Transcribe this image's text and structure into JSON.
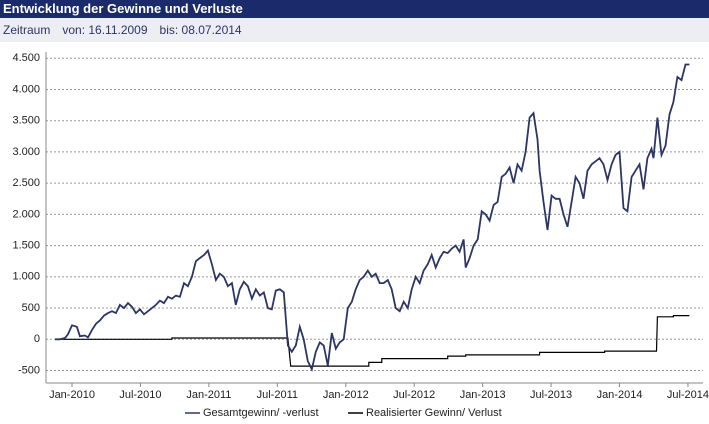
{
  "header": {
    "title": "Entwicklung der Gewinne und Verluste",
    "period_label": "Zeitraum",
    "from": "von: 16.11.2009",
    "to": "bis: 08.07.2014"
  },
  "chart_data": {
    "type": "line",
    "grid": true,
    "legend": "bottom",
    "xlim": [
      2009.81,
      2014.61
    ],
    "xticks": [
      {
        "value": 2010,
        "label": "Jan-2010"
      },
      {
        "value": 2010.5,
        "label": "Jul-2010"
      },
      {
        "value": 2011,
        "label": "Jan-2011"
      },
      {
        "value": 2011.5,
        "label": "Jul-2011"
      },
      {
        "value": 2012,
        "label": "Jan-2012"
      },
      {
        "value": 2012.5,
        "label": "Jul-2012"
      },
      {
        "value": 2013,
        "label": "Jan-2013"
      },
      {
        "value": 2013.5,
        "label": "Jul-2013"
      },
      {
        "value": 2014,
        "label": "Jan-2014"
      },
      {
        "value": 2014.5,
        "label": "Jul-2014"
      }
    ],
    "ylim": [
      -700,
      4600
    ],
    "yticks": [
      -500,
      0,
      500,
      {
        "value": 1000,
        "label": "1.000"
      },
      {
        "value": 1500,
        "label": "1.500"
      },
      {
        "value": 2000,
        "label": "2.000"
      },
      {
        "value": 2500,
        "label": "2.500"
      },
      {
        "value": 3000,
        "label": "3.000"
      },
      {
        "value": 3500,
        "label": "3.500"
      },
      {
        "value": 4000,
        "label": "4.000"
      },
      {
        "value": 4500,
        "label": "4.500"
      }
    ],
    "series": [
      {
        "name": "Gesamtgewinn/ -verlust",
        "color": "#2b3566",
        "x": [
          2009.876,
          2009.912,
          2009.949,
          2009.971,
          2010.0,
          2010.036,
          2010.058,
          2010.095,
          2010.117,
          2010.146,
          2010.175,
          2010.204,
          2010.234,
          2010.263,
          2010.292,
          2010.321,
          2010.35,
          2010.38,
          2010.409,
          2010.438,
          2010.467,
          2010.496,
          2010.526,
          2010.555,
          2010.584,
          2010.613,
          2010.642,
          2010.672,
          2010.701,
          2010.73,
          2010.759,
          2010.788,
          2010.818,
          2010.847,
          2010.876,
          2010.905,
          2010.934,
          2010.964,
          2010.993,
          2011.022,
          2011.051,
          2011.08,
          2011.109,
          2011.139,
          2011.168,
          2011.197,
          2011.226,
          2011.255,
          2011.285,
          2011.314,
          2011.343,
          2011.372,
          2011.401,
          2011.431,
          2011.46,
          2011.489,
          2011.518,
          2011.547,
          2011.577,
          2011.606,
          2011.635,
          2011.664,
          2011.693,
          2011.723,
          2011.752,
          2011.781,
          2011.81,
          2011.839,
          2011.869,
          2011.898,
          2011.927,
          2011.956,
          2011.985,
          2012.015,
          2012.044,
          2012.073,
          2012.102,
          2012.131,
          2012.161,
          2012.19,
          2012.219,
          2012.248,
          2012.277,
          2012.307,
          2012.336,
          2012.365,
          2012.394,
          2012.423,
          2012.453,
          2012.482,
          2012.511,
          2012.54,
          2012.569,
          2012.599,
          2012.628,
          2012.657,
          2012.686,
          2012.715,
          2012.745,
          2012.774,
          2012.803,
          2012.832,
          2012.861,
          2012.876,
          2012.905,
          2012.934,
          2012.964,
          2012.993,
          2013.022,
          2013.051,
          2013.08,
          2013.109,
          2013.139,
          2013.168,
          2013.197,
          2013.226,
          2013.255,
          2013.285,
          2013.314,
          2013.343,
          2013.372,
          2013.401,
          2013.416,
          2013.445,
          2013.474,
          2013.504,
          2013.533,
          2013.562,
          2013.591,
          2013.62,
          2013.65,
          2013.679,
          2013.708,
          2013.737,
          2013.766,
          2013.796,
          2013.825,
          2013.854,
          2013.883,
          2013.912,
          2013.942,
          2013.971,
          2014.0,
          2014.029,
          2014.058,
          2014.088,
          2014.117,
          2014.146,
          2014.175,
          2014.204,
          2014.234,
          2014.248,
          2014.277,
          2014.307,
          2014.336,
          2014.365,
          2014.394,
          2014.423,
          2014.453,
          2014.482,
          2014.511
        ],
        "values": [
          0,
          0,
          20,
          80,
          224,
          200,
          50,
          60,
          30,
          150,
          250,
          300,
          380,
          420,
          450,
          420,
          550,
          500,
          580,
          520,
          420,
          480,
          400,
          450,
          500,
          550,
          620,
          580,
          680,
          650,
          700,
          680,
          900,
          850,
          1000,
          1250,
          1300,
          1350,
          1420,
          1200,
          950,
          1050,
          1000,
          850,
          900,
          550,
          800,
          920,
          850,
          650,
          800,
          700,
          750,
          500,
          480,
          780,
          800,
          750,
          -100,
          -200,
          -100,
          200,
          0,
          -350,
          -480,
          -200,
          -50,
          -100,
          -420,
          100,
          -150,
          -50,
          0,
          500,
          600,
          800,
          950,
          1000,
          1100,
          1000,
          1050,
          900,
          900,
          950,
          800,
          500,
          450,
          600,
          500,
          800,
          1000,
          900,
          1100,
          1200,
          1350,
          1150,
          1300,
          1400,
          1380,
          1450,
          1500,
          1400,
          1600,
          1150,
          1300,
          1500,
          1600,
          2050,
          2000,
          1900,
          2150,
          2200,
          2600,
          2650,
          2750,
          2500,
          2800,
          2700,
          3000,
          3550,
          3620,
          3200,
          2700,
          2200,
          1750,
          2300,
          2250,
          2250,
          2000,
          1800,
          2200,
          2600,
          2500,
          2250,
          2700,
          2800,
          2850,
          2900,
          2800,
          2550,
          2800,
          2950,
          3000,
          2100,
          2050,
          2600,
          2700,
          2800,
          2400,
          2900,
          3050,
          2900,
          3550,
          2950,
          3100,
          3600,
          3800,
          4200,
          4150,
          4400,
          4400
        ]
      },
      {
        "name": "Realisierter Gewinn/ Verlust",
        "color": "#000000",
        "x": [
          2009.876,
          2010.73,
          2010.73,
          2011.577,
          2011.598,
          2012.168,
          2012.168,
          2012.263,
          2012.263,
          2012.745,
          2012.745,
          2012.876,
          2012.876,
          2013.416,
          2013.416,
          2013.891,
          2013.891,
          2014.27,
          2014.277,
          2014.394,
          2014.394,
          2014.511
        ],
        "values": [
          0,
          0,
          20,
          20,
          -430,
          -430,
          -370,
          -370,
          -310,
          -310,
          -270,
          -270,
          -250,
          -250,
          -210,
          -210,
          -190,
          -190,
          360,
          360,
          380,
          380
        ]
      }
    ]
  }
}
